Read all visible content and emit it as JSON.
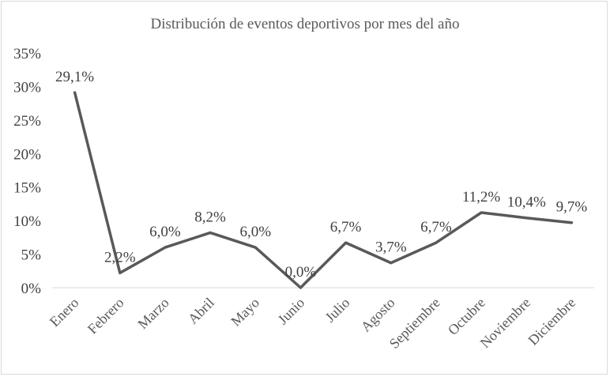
{
  "chart_data": {
    "type": "line",
    "title": "Distribución de eventos deportivos por mes del año",
    "xlabel": "",
    "ylabel": "",
    "categories": [
      "Enero",
      "Febrero",
      "Marzo",
      "Abril",
      "Mayo",
      "Junio",
      "Julio",
      "Agosto",
      "Septiembre",
      "Octubre",
      "Noviembre",
      "Diciembre"
    ],
    "series": [
      {
        "values": [
          29.1,
          2.2,
          6.0,
          8.2,
          6.0,
          0.0,
          6.7,
          3.7,
          6.7,
          11.2,
          10.4,
          9.7
        ],
        "labels": [
          "29,1%",
          "2,2%",
          "6,0%",
          "8,2%",
          "6,0%",
          "0,0%",
          "6,7%",
          "3,7%",
          "6,7%",
          "11,2%",
          "10,4%",
          "9,7%"
        ]
      }
    ],
    "yticks": [
      "0%",
      "5%",
      "10%",
      "15%",
      "20%",
      "25%",
      "30%",
      "35%"
    ],
    "ylim": [
      0,
      35
    ],
    "grid": false,
    "legend": "none",
    "colors": {
      "line": "#595959",
      "text": "#404040",
      "axis": "#d9d9d9"
    }
  }
}
